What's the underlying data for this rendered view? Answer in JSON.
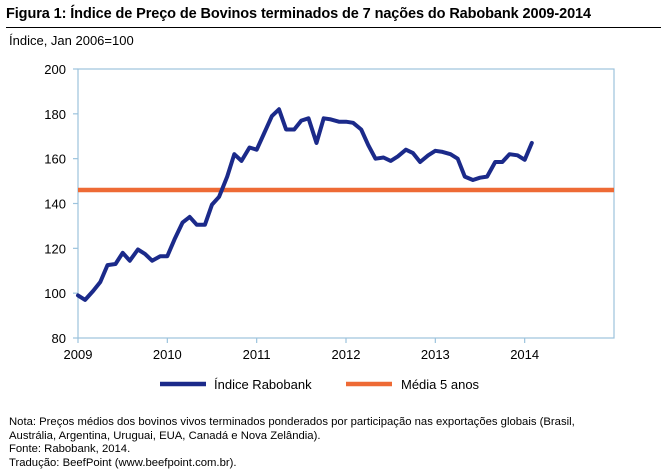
{
  "title": "Figura 1: Índice de Preço de Bovinos terminados de 7 nações do Rabobank 2009-2014",
  "notes": {
    "note_line1": "Nota: Preços médios dos bovinos vivos terminados ponderados por participação nas exportações globais (Brasil,",
    "note_line2": "Austrália, Argentina, Uruguai, EUA, Canadá e Nova Zelândia).",
    "source": "Fonte: Rabobank, 2014.",
    "translation": "Tradução: BeefPoint (www.beefpoint.com.br)."
  },
  "chart_data": {
    "type": "line",
    "title": "",
    "ylabel": "Índice, Jan 2006=100",
    "xlabel": "",
    "xlim": [
      2009,
      2015
    ],
    "ylim": [
      80,
      200
    ],
    "x_ticks": [
      2009,
      2010,
      2011,
      2012,
      2013,
      2014
    ],
    "y_ticks": [
      80,
      100,
      120,
      140,
      160,
      180,
      200
    ],
    "grid": false,
    "legend_position": "bottom",
    "series": [
      {
        "name": "Índice Rabobank",
        "color": "#1b2a8a",
        "points": [
          [
            2009.0,
            99
          ],
          [
            2009.08,
            97
          ],
          [
            2009.17,
            101
          ],
          [
            2009.25,
            105
          ],
          [
            2009.33,
            112.5
          ],
          [
            2009.42,
            113
          ],
          [
            2009.5,
            118
          ],
          [
            2009.58,
            114.5
          ],
          [
            2009.67,
            119.5
          ],
          [
            2009.75,
            117.5
          ],
          [
            2009.83,
            114.5
          ],
          [
            2009.92,
            116.5
          ],
          [
            2010.0,
            116.5
          ],
          [
            2010.08,
            124
          ],
          [
            2010.17,
            131.5
          ],
          [
            2010.25,
            134
          ],
          [
            2010.33,
            130.5
          ],
          [
            2010.42,
            130.5
          ],
          [
            2010.5,
            139.5
          ],
          [
            2010.58,
            143
          ],
          [
            2010.67,
            152
          ],
          [
            2010.75,
            162
          ],
          [
            2010.83,
            159
          ],
          [
            2010.92,
            165
          ],
          [
            2011.0,
            164
          ],
          [
            2011.08,
            171
          ],
          [
            2011.17,
            179
          ],
          [
            2011.25,
            182
          ],
          [
            2011.33,
            173
          ],
          [
            2011.42,
            173
          ],
          [
            2011.5,
            177
          ],
          [
            2011.58,
            178
          ],
          [
            2011.67,
            167
          ],
          [
            2011.75,
            178
          ],
          [
            2011.83,
            177.5
          ],
          [
            2011.92,
            176.5
          ],
          [
            2012.0,
            176.5
          ],
          [
            2012.08,
            176
          ],
          [
            2012.17,
            173
          ],
          [
            2012.25,
            166
          ],
          [
            2012.33,
            160
          ],
          [
            2012.42,
            160.5
          ],
          [
            2012.5,
            159
          ],
          [
            2012.58,
            161
          ],
          [
            2012.67,
            164
          ],
          [
            2012.75,
            162.5
          ],
          [
            2012.83,
            158.5
          ],
          [
            2012.92,
            161.5
          ],
          [
            2013.0,
            163.5
          ],
          [
            2013.08,
            163
          ],
          [
            2013.17,
            162
          ],
          [
            2013.25,
            160
          ],
          [
            2013.33,
            152
          ],
          [
            2013.42,
            150.5
          ],
          [
            2013.5,
            151.5
          ],
          [
            2013.58,
            152
          ],
          [
            2013.67,
            158.5
          ],
          [
            2013.75,
            158.5
          ],
          [
            2013.83,
            162
          ],
          [
            2013.92,
            161.5
          ],
          [
            2014.0,
            159.5
          ],
          [
            2014.08,
            167
          ]
        ]
      },
      {
        "name": "Média 5 anos",
        "color": "#ee6a35",
        "points": [
          [
            2009.0,
            146
          ],
          [
            2015.0,
            146
          ]
        ]
      }
    ]
  }
}
